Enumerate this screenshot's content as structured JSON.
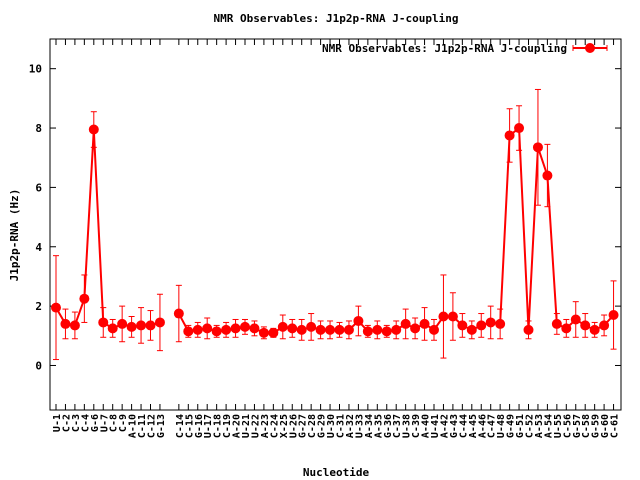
{
  "chart_data": {
    "type": "line",
    "title": "NMR Observables: J1p2p-RNA J-coupling",
    "xlabel": "Nucleotide",
    "ylabel": "J1p2p-RNA (Hz)",
    "ylim": [
      -1.5,
      11
    ],
    "yticks": [
      0,
      2,
      4,
      6,
      8,
      10
    ],
    "legend": "top-right",
    "series_color": "#ff0000",
    "series": [
      {
        "name": "NMR Observables: J1p2p-RNA J-coupling",
        "points": [
          {
            "label": "U-1",
            "i": 1,
            "y": 1.95,
            "err": 1.75
          },
          {
            "label": "C-2",
            "i": 2,
            "y": 1.4,
            "err": 0.5
          },
          {
            "label": "C-3",
            "i": 3,
            "y": 1.35,
            "err": 0.45
          },
          {
            "label": "C-4",
            "i": 4,
            "y": 2.25,
            "err": 0.8
          },
          {
            "label": "G-6",
            "i": 5,
            "y": 7.95,
            "err": 0.6
          },
          {
            "label": "U-7",
            "i": 6,
            "y": 1.45,
            "err": 0.5
          },
          {
            "label": "C-8",
            "i": 7,
            "y": 1.25,
            "err": 0.3
          },
          {
            "label": "C-9",
            "i": 8,
            "y": 1.4,
            "err": 0.6
          },
          {
            "label": "A-10",
            "i": 9,
            "y": 1.3,
            "err": 0.35
          },
          {
            "label": "C-11",
            "i": 10,
            "y": 1.35,
            "err": 0.6
          },
          {
            "label": "C-12",
            "i": 11,
            "y": 1.35,
            "err": 0.5
          },
          {
            "label": "G-13",
            "i": 12,
            "y": 1.45,
            "err": 0.95
          },
          {
            "label": "C-14",
            "i": 14,
            "y": 1.75,
            "err": 0.95
          },
          {
            "label": "C-15",
            "i": 15,
            "y": 1.15,
            "err": 0.2
          },
          {
            "label": "G-16",
            "i": 16,
            "y": 1.2,
            "err": 0.25
          },
          {
            "label": "U-17",
            "i": 17,
            "y": 1.25,
            "err": 0.35
          },
          {
            "label": "C-18",
            "i": 18,
            "y": 1.15,
            "err": 0.2
          },
          {
            "label": "C-19",
            "i": 19,
            "y": 1.2,
            "err": 0.25
          },
          {
            "label": "A-20",
            "i": 20,
            "y": 1.25,
            "err": 0.3
          },
          {
            "label": "U-21",
            "i": 21,
            "y": 1.3,
            "err": 0.25
          },
          {
            "label": "U-22",
            "i": 22,
            "y": 1.25,
            "err": 0.25
          },
          {
            "label": "A-23",
            "i": 23,
            "y": 1.1,
            "err": 0.2
          },
          {
            "label": "C-24",
            "i": 24,
            "y": 1.1,
            "err": 0.15
          },
          {
            "label": "X-25",
            "i": 25,
            "y": 1.3,
            "err": 0.4
          },
          {
            "label": "U-26",
            "i": 26,
            "y": 1.25,
            "err": 0.3
          },
          {
            "label": "G-27",
            "i": 27,
            "y": 1.2,
            "err": 0.35
          },
          {
            "label": "C-28",
            "i": 28,
            "y": 1.3,
            "err": 0.45
          },
          {
            "label": "G-29",
            "i": 29,
            "y": 1.2,
            "err": 0.3
          },
          {
            "label": "U-30",
            "i": 30,
            "y": 1.2,
            "err": 0.3
          },
          {
            "label": "C-31",
            "i": 31,
            "y": 1.2,
            "err": 0.25
          },
          {
            "label": "A-32",
            "i": 32,
            "y": 1.2,
            "err": 0.3
          },
          {
            "label": "U-33",
            "i": 33,
            "y": 1.5,
            "err": 0.5
          },
          {
            "label": "A-34",
            "i": 34,
            "y": 1.15,
            "err": 0.2
          },
          {
            "label": "A-35",
            "i": 35,
            "y": 1.2,
            "err": 0.3
          },
          {
            "label": "G-36",
            "i": 36,
            "y": 1.15,
            "err": 0.2
          },
          {
            "label": "C-37",
            "i": 37,
            "y": 1.2,
            "err": 0.3
          },
          {
            "label": "U-38",
            "i": 38,
            "y": 1.4,
            "err": 0.5
          },
          {
            "label": "C-39",
            "i": 39,
            "y": 1.25,
            "err": 0.35
          },
          {
            "label": "A-40",
            "i": 40,
            "y": 1.4,
            "err": 0.55
          },
          {
            "label": "U-41",
            "i": 41,
            "y": 1.2,
            "err": 0.35
          },
          {
            "label": "A-42",
            "i": 42,
            "y": 1.65,
            "err": 1.4
          },
          {
            "label": "G-43",
            "i": 43,
            "y": 1.65,
            "err": 0.8
          },
          {
            "label": "C-44",
            "i": 44,
            "y": 1.35,
            "err": 0.4
          },
          {
            "label": "A-45",
            "i": 45,
            "y": 1.2,
            "err": 0.3
          },
          {
            "label": "A-46",
            "i": 46,
            "y": 1.35,
            "err": 0.4
          },
          {
            "label": "C-47",
            "i": 47,
            "y": 1.45,
            "err": 0.55
          },
          {
            "label": "U-48",
            "i": 48,
            "y": 1.4,
            "err": 0.5
          },
          {
            "label": "G-49",
            "i": 49,
            "y": 7.75,
            "err": 0.9
          },
          {
            "label": "G-51",
            "i": 50,
            "y": 8.0,
            "err": 0.75
          },
          {
            "label": "C-52",
            "i": 51,
            "y": 1.2,
            "err": 0.3
          },
          {
            "label": "A-53",
            "i": 52,
            "y": 7.35,
            "err": 1.95
          },
          {
            "label": "A-54",
            "i": 53,
            "y": 6.4,
            "err": 1.05
          },
          {
            "label": "U-55",
            "i": 54,
            "y": 1.4,
            "err": 0.35
          },
          {
            "label": "C-56",
            "i": 55,
            "y": 1.25,
            "err": 0.3
          },
          {
            "label": "G-57",
            "i": 56,
            "y": 1.55,
            "err": 0.6
          },
          {
            "label": "C-58",
            "i": 57,
            "y": 1.35,
            "err": 0.4
          },
          {
            "label": "G-59",
            "i": 58,
            "y": 1.2,
            "err": 0.25
          },
          {
            "label": "G-60",
            "i": 59,
            "y": 1.35,
            "err": 0.35
          },
          {
            "label": "C-61",
            "i": 60,
            "y": 1.7,
            "err": 1.15
          }
        ]
      }
    ]
  }
}
